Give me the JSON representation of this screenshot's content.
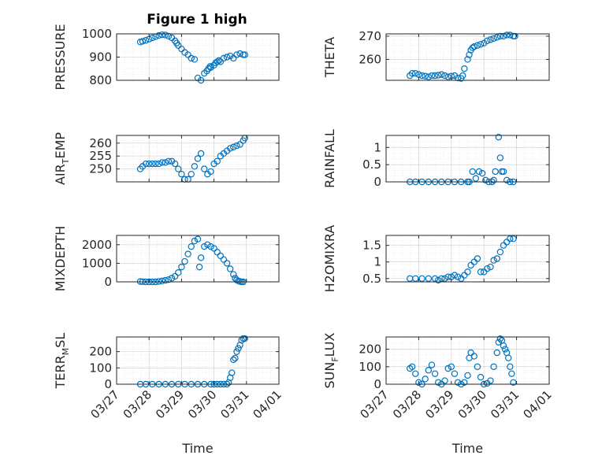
{
  "figure": {
    "title": "Figure 1 high",
    "xlabel": "Time",
    "xtick_labels": [
      "03/27",
      "03/28",
      "03/29",
      "03/30",
      "03/31",
      "04/01"
    ]
  },
  "colors": {
    "marker": "#0072BD",
    "axes": "#262626",
    "grid": "#cfcfcf"
  },
  "chart_data": [
    {
      "type": "scatter",
      "id": "pressure",
      "ylabel": "PRESSURE",
      "ylabel_sub": "",
      "ylim": [
        800,
        1000
      ],
      "yticks": [
        800,
        900,
        1000
      ],
      "grid": true,
      "x": [
        0.73,
        0.8,
        0.9,
        1.0,
        1.1,
        1.2,
        1.3,
        1.4,
        1.5,
        1.6,
        1.7,
        1.8,
        1.85,
        1.9,
        2.0,
        2.1,
        2.2,
        2.3,
        2.4,
        2.5,
        2.6,
        2.7,
        2.78,
        2.83,
        2.88,
        2.9,
        3.0,
        3.05,
        3.1,
        3.15,
        3.2,
        3.3,
        3.4,
        3.5,
        3.6,
        3.7,
        3.8,
        3.9,
        3.95
      ],
      "y": [
        965,
        968,
        972,
        977,
        983,
        988,
        993,
        996,
        995,
        990,
        983,
        970,
        960,
        950,
        935,
        920,
        910,
        895,
        890,
        810,
        800,
        830,
        840,
        850,
        860,
        855,
        865,
        875,
        880,
        885,
        880,
        895,
        900,
        905,
        895,
        910,
        915,
        910,
        910
      ]
    },
    {
      "type": "scatter",
      "id": "theta",
      "ylabel": "THETA",
      "ylabel_sub": "",
      "ylim": [
        251,
        271
      ],
      "yticks": [
        260,
        270
      ],
      "grid": true,
      "x": [
        0.73,
        0.8,
        0.9,
        1.0,
        1.1,
        1.2,
        1.3,
        1.4,
        1.5,
        1.6,
        1.7,
        1.8,
        1.9,
        2.0,
        2.1,
        2.2,
        2.3,
        2.35,
        2.4,
        2.5,
        2.55,
        2.6,
        2.65,
        2.7,
        2.8,
        2.9,
        3.0,
        3.1,
        3.2,
        3.3,
        3.4,
        3.5,
        3.6,
        3.7,
        3.8,
        3.9,
        3.95
      ],
      "y": [
        253,
        254,
        254,
        253.5,
        253,
        252.8,
        252.5,
        253,
        253,
        253.2,
        253.5,
        253,
        252.5,
        252.8,
        253,
        252,
        251.8,
        253,
        256,
        260,
        262,
        264,
        265,
        265.5,
        266,
        266.5,
        267,
        268,
        268.5,
        269,
        269.5,
        270,
        270,
        270.5,
        270.5,
        270,
        270
      ]
    },
    {
      "type": "scatter",
      "id": "air_temp",
      "ylabel": "AIR",
      "ylabel_sub": "T",
      "ylabel_tail": "EMP",
      "ylim": [
        245,
        263
      ],
      "yticks": [
        250,
        255,
        260
      ],
      "grid": true,
      "x": [
        0.73,
        0.8,
        0.9,
        1.0,
        1.1,
        1.2,
        1.3,
        1.4,
        1.5,
        1.6,
        1.7,
        1.8,
        1.9,
        2.0,
        2.1,
        2.2,
        2.3,
        2.4,
        2.5,
        2.6,
        2.7,
        2.8,
        2.9,
        3.0,
        3.1,
        3.2,
        3.3,
        3.4,
        3.5,
        3.6,
        3.7,
        3.8,
        3.9,
        3.95
      ],
      "y": [
        250,
        251,
        252,
        252,
        252,
        252,
        252,
        252.5,
        252.5,
        253,
        253,
        252,
        250,
        248,
        246,
        246,
        248,
        251,
        254,
        256,
        250,
        248,
        249,
        252,
        253,
        255,
        256,
        257,
        258,
        258.5,
        259,
        259.5,
        261,
        262
      ]
    },
    {
      "type": "scatter",
      "id": "rainfall",
      "ylabel": "RAINFALL",
      "ylabel_sub": "",
      "ylim": [
        0,
        1.35
      ],
      "yticks": [
        0,
        0.5,
        1
      ],
      "ytick_labels": [
        "0",
        "0.5",
        "1"
      ],
      "grid": true,
      "x": [
        0.73,
        0.9,
        1.1,
        1.3,
        1.5,
        1.7,
        1.9,
        2.1,
        2.3,
        2.5,
        2.55,
        2.65,
        2.75,
        2.85,
        2.95,
        3.05,
        3.15,
        3.25,
        3.3,
        3.35,
        3.45,
        3.5,
        3.55,
        3.6,
        3.7,
        3.8,
        3.9
      ],
      "y": [
        0,
        0,
        0,
        0,
        0,
        0,
        0,
        0,
        0,
        0,
        0,
        0.3,
        0.1,
        0.3,
        0.25,
        0.05,
        0,
        0,
        0.05,
        0.3,
        1.3,
        0.7,
        0.3,
        0.3,
        0.05,
        0,
        0
      ]
    },
    {
      "type": "scatter",
      "id": "mixdepth",
      "ylabel": "MIXDEPTH",
      "ylabel_sub": "",
      "ylim": [
        0,
        2500
      ],
      "yticks": [
        0,
        1000,
        2000
      ],
      "grid": true,
      "x": [
        0.73,
        0.8,
        0.9,
        1.0,
        1.1,
        1.2,
        1.3,
        1.4,
        1.5,
        1.6,
        1.7,
        1.8,
        1.9,
        2.0,
        2.1,
        2.2,
        2.3,
        2.4,
        2.5,
        2.55,
        2.6,
        2.7,
        2.8,
        2.9,
        3.0,
        3.1,
        3.2,
        3.3,
        3.4,
        3.5,
        3.6,
        3.65,
        3.7,
        3.75,
        3.8,
        3.85,
        3.9
      ],
      "y": [
        20,
        10,
        0,
        0,
        0,
        0,
        20,
        50,
        80,
        120,
        200,
        300,
        500,
        800,
        1100,
        1500,
        1900,
        2200,
        2300,
        800,
        1300,
        1900,
        2000,
        1900,
        1800,
        1600,
        1400,
        1200,
        1000,
        700,
        400,
        200,
        100,
        50,
        20,
        0,
        0
      ]
    },
    {
      "type": "scatter",
      "id": "h2omixra",
      "ylabel": "H2OMIXRA",
      "ylabel_sub": "",
      "ylim": [
        0.4,
        1.8
      ],
      "yticks": [
        0.5,
        1,
        1.5
      ],
      "ytick_labels": [
        "0.5",
        "1",
        "1.5"
      ],
      "grid": true,
      "x": [
        0.73,
        0.9,
        1.1,
        1.3,
        1.5,
        1.6,
        1.7,
        1.8,
        1.9,
        2.0,
        2.1,
        2.2,
        2.3,
        2.4,
        2.5,
        2.6,
        2.7,
        2.8,
        2.9,
        3.0,
        3.1,
        3.2,
        3.3,
        3.4,
        3.5,
        3.6,
        3.7,
        3.8,
        3.9
      ],
      "y": [
        0.5,
        0.5,
        0.5,
        0.5,
        0.5,
        0.45,
        0.5,
        0.5,
        0.55,
        0.55,
        0.6,
        0.55,
        0.5,
        0.6,
        0.7,
        0.9,
        1.0,
        1.1,
        0.7,
        0.7,
        0.8,
        0.85,
        1.05,
        1.1,
        1.3,
        1.5,
        1.6,
        1.7,
        1.7
      ]
    },
    {
      "type": "scatter",
      "id": "terr_msl",
      "ylabel": "TERR",
      "ylabel_sub": "M",
      "ylabel_tail": "SL",
      "ylim": [
        0,
        290
      ],
      "yticks": [
        0,
        100,
        200
      ],
      "grid": true,
      "x": [
        0.73,
        0.9,
        1.1,
        1.3,
        1.5,
        1.7,
        1.9,
        2.1,
        2.3,
        2.5,
        2.7,
        2.9,
        3.0,
        3.1,
        3.2,
        3.3,
        3.4,
        3.45,
        3.5,
        3.55,
        3.6,
        3.65,
        3.7,
        3.75,
        3.8,
        3.85,
        3.9,
        3.95
      ],
      "y": [
        0,
        0,
        0,
        0,
        0,
        0,
        0,
        0,
        0,
        0,
        0,
        0,
        0,
        0,
        0,
        0,
        0,
        10,
        40,
        70,
        150,
        160,
        200,
        220,
        240,
        270,
        280,
        280
      ]
    },
    {
      "type": "scatter",
      "id": "sun_flux",
      "ylabel": "SUN",
      "ylabel_sub": "F",
      "ylabel_tail": "LUX",
      "ylim": [
        0,
        270
      ],
      "yticks": [
        0,
        100,
        200
      ],
      "grid": true,
      "x": [
        0.73,
        0.8,
        0.9,
        1.0,
        1.1,
        1.2,
        1.3,
        1.4,
        1.5,
        1.6,
        1.7,
        1.8,
        1.9,
        2.0,
        2.1,
        2.2,
        2.3,
        2.4,
        2.5,
        2.55,
        2.6,
        2.7,
        2.8,
        2.9,
        3.0,
        3.1,
        3.2,
        3.3,
        3.4,
        3.45,
        3.5,
        3.55,
        3.6,
        3.65,
        3.7,
        3.75,
        3.8,
        3.85,
        3.9
      ],
      "y": [
        90,
        100,
        60,
        10,
        0,
        30,
        80,
        110,
        60,
        10,
        0,
        20,
        90,
        100,
        60,
        10,
        0,
        10,
        50,
        150,
        180,
        160,
        100,
        40,
        0,
        5,
        20,
        100,
        180,
        240,
        260,
        250,
        220,
        200,
        180,
        150,
        100,
        60,
        10
      ]
    }
  ]
}
